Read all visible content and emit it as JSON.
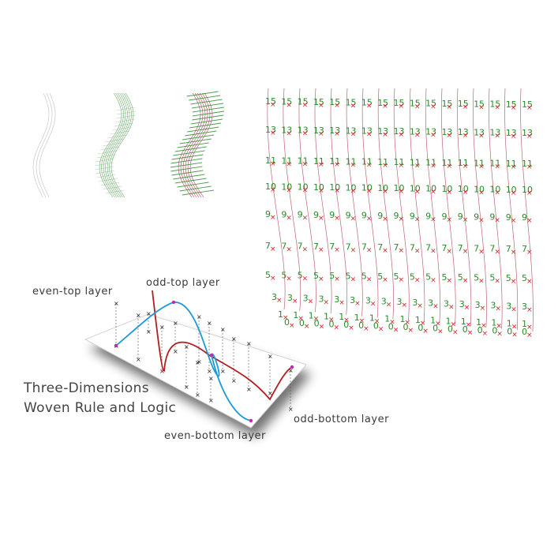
{
  "labels": {
    "even_top": "even-top layer",
    "odd_top": "odd-top layer",
    "odd_bottom": "odd-bottom layer",
    "even_bottom": "even-bottom layer"
  },
  "title": {
    "line1": "Three-Dimensions",
    "line2": "Woven Rule and Logic"
  },
  "grid_rows": [
    "15",
    "13",
    "11",
    "10",
    "9",
    "7",
    "5",
    "3",
    "1",
    "0"
  ],
  "colors": {
    "odd_curve": "#b41e1e",
    "even_curve": "#1e9bd7",
    "grid_line": "#b04a5a",
    "grid_number": "#2a8a2a",
    "grid_cross": "#d42020",
    "strand_light": "#cfcfcf",
    "strand_green": "#2f8a2f"
  }
}
